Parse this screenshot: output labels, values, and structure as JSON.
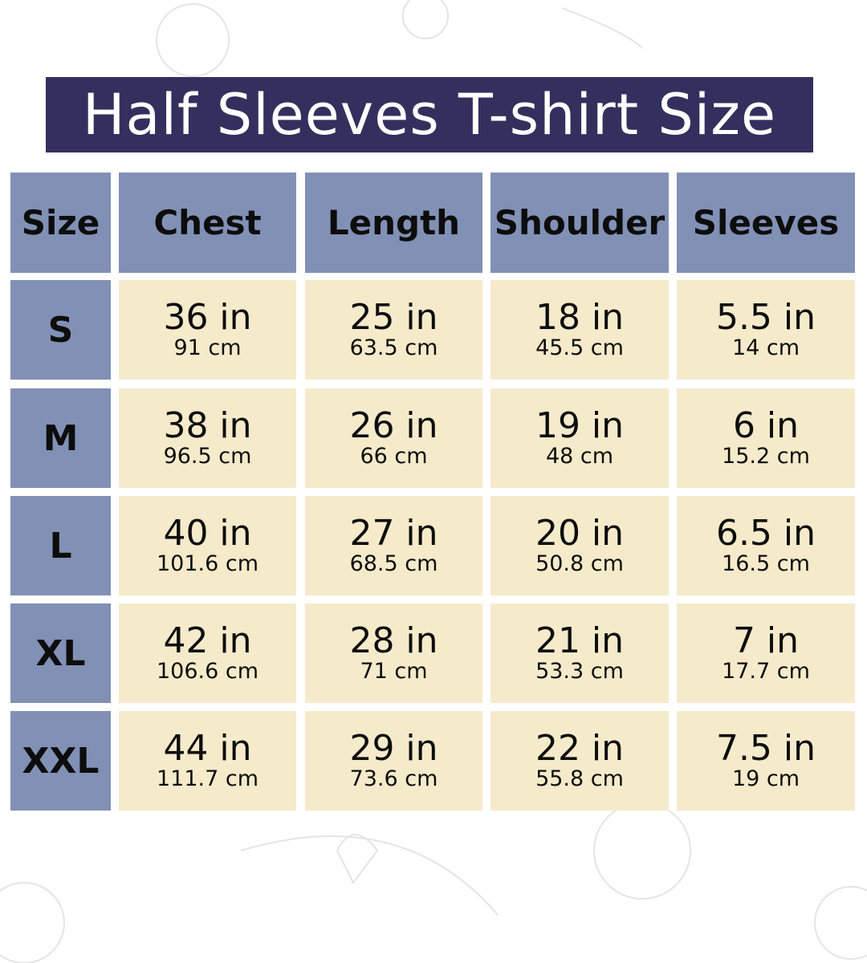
{
  "title": "Half Sleeves T-shirt Size",
  "colors": {
    "title_bg": "#33305e",
    "header_bg": "#8190b5",
    "cell_bg": "#f5ebcb"
  },
  "headers": [
    "Size",
    "Chest",
    "Length",
    "Shoulder",
    "Sleeves"
  ],
  "rows": [
    {
      "size": "S",
      "values": [
        {
          "in": "36 in",
          "cm": "91 cm"
        },
        {
          "in": "25 in",
          "cm": "63.5 cm"
        },
        {
          "in": "18 in",
          "cm": "45.5 cm"
        },
        {
          "in": "5.5 in",
          "cm": "14 cm"
        }
      ]
    },
    {
      "size": "M",
      "values": [
        {
          "in": "38 in",
          "cm": "96.5 cm"
        },
        {
          "in": "26 in",
          "cm": "66 cm"
        },
        {
          "in": "19 in",
          "cm": "48 cm"
        },
        {
          "in": "6 in",
          "cm": "15.2 cm"
        }
      ]
    },
    {
      "size": "L",
      "values": [
        {
          "in": "40 in",
          "cm": "101.6 cm"
        },
        {
          "in": "27 in",
          "cm": "68.5 cm"
        },
        {
          "in": "20 in",
          "cm": "50.8 cm"
        },
        {
          "in": "6.5 in",
          "cm": "16.5 cm"
        }
      ]
    },
    {
      "size": "XL",
      "values": [
        {
          "in": "42 in",
          "cm": "106.6 cm"
        },
        {
          "in": "28 in",
          "cm": "71 cm"
        },
        {
          "in": "21 in",
          "cm": "53.3 cm"
        },
        {
          "in": "7 in",
          "cm": "17.7 cm"
        }
      ]
    },
    {
      "size": "XXL",
      "values": [
        {
          "in": "44 in",
          "cm": "111.7 cm"
        },
        {
          "in": "29 in",
          "cm": "73.6 cm"
        },
        {
          "in": "22 in",
          "cm": "55.8 cm"
        },
        {
          "in": "7.5 in",
          "cm": "19 cm"
        }
      ]
    }
  ]
}
